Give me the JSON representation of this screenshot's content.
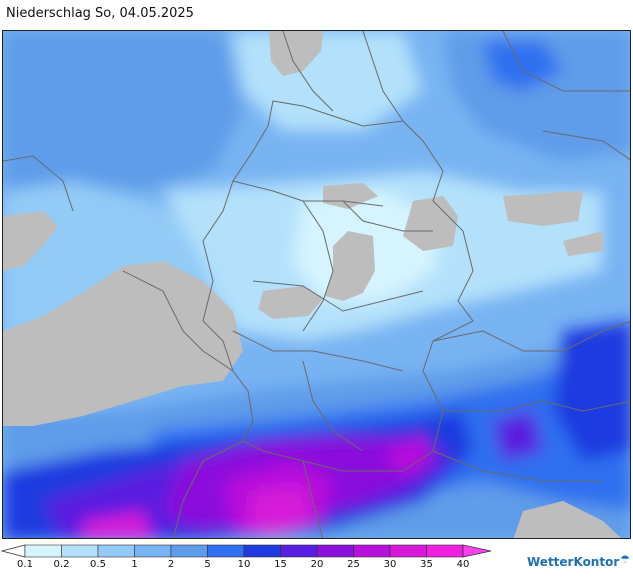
{
  "header": {
    "title": "Niederschlag So, 04.05.2025"
  },
  "legend": {
    "ticks": [
      "0.1",
      "0.2",
      "0.5",
      "1",
      "2",
      "5",
      "10",
      "15",
      "20",
      "25",
      "30",
      "35",
      "40"
    ],
    "colors": [
      "#ffffff",
      "#d6f4ff",
      "#b3e1fb",
      "#93cbf7",
      "#78b3f2",
      "#5f9ce9",
      "#2f6ff0",
      "#1f3ae0",
      "#5a1ee0",
      "#8a10dc",
      "#b810dc",
      "#d61ad8",
      "#f020e0",
      "#ff40f0"
    ]
  },
  "brand": {
    "name": "WetterKontor",
    "icon": "umbrella-icon"
  },
  "map": {
    "colors": {
      "land_nodata": "#bdbdbd",
      "border": "#6a6a6a"
    }
  }
}
